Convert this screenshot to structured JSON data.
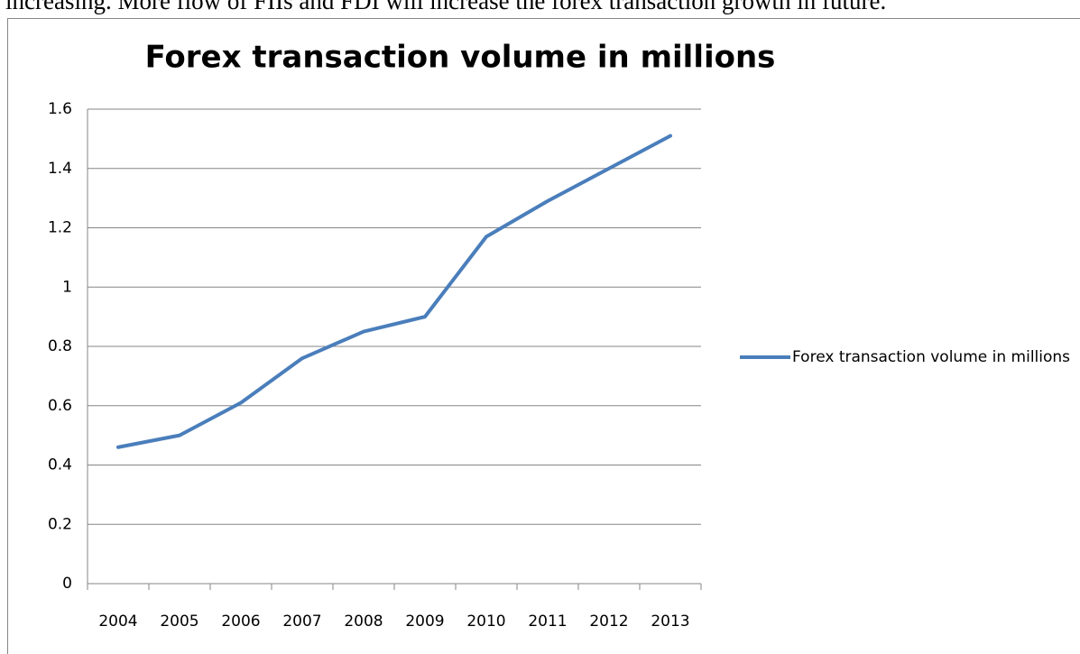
{
  "document_text": "increasing. More flow of FIIs and FDI will increase the forex transaction growth in future.",
  "chart_data": {
    "type": "line",
    "title": "Forex transaction volume in millions",
    "categories": [
      "2004",
      "2005",
      "2006",
      "2007",
      "2008",
      "2009",
      "2010",
      "2011",
      "2012",
      "2013"
    ],
    "series": [
      {
        "name": "Forex transaction volume in millions",
        "color": "#4a7ebb",
        "values": [
          0.46,
          0.5,
          0.61,
          0.76,
          0.85,
          0.9,
          1.17,
          1.29,
          1.4,
          1.51
        ]
      }
    ],
    "ylim": [
      0,
      1.6
    ],
    "yticks": [
      0,
      0.2,
      0.4,
      0.6,
      0.8,
      1,
      1.2,
      1.4,
      1.6
    ],
    "grid": true,
    "legend": "right"
  }
}
